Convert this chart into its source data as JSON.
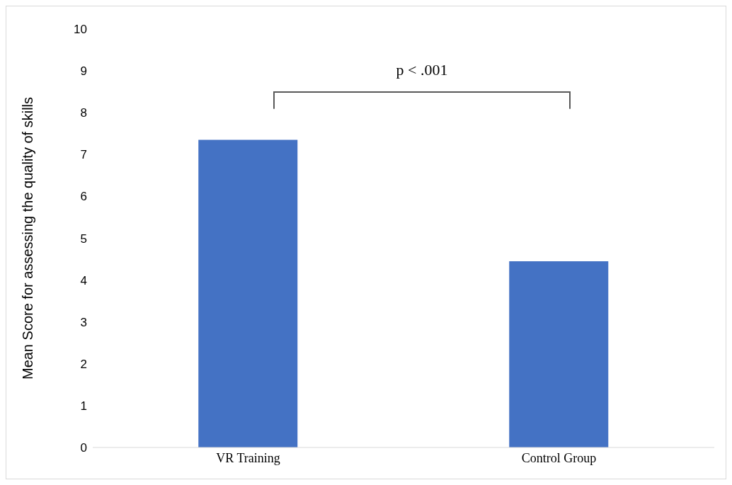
{
  "chart_data": {
    "type": "bar",
    "ylabel": "Mean Score for assessing the quality of skills",
    "categories": [
      "VR Training",
      "Control Group"
    ],
    "values": [
      7.35,
      4.45
    ],
    "color": "#4472c4",
    "ylim": [
      0,
      10
    ],
    "yticks": [
      0,
      1,
      2,
      3,
      4,
      5,
      6,
      7,
      8,
      9,
      10
    ],
    "grid": false,
    "legend": false,
    "annotations": [
      "p < .001"
    ]
  }
}
